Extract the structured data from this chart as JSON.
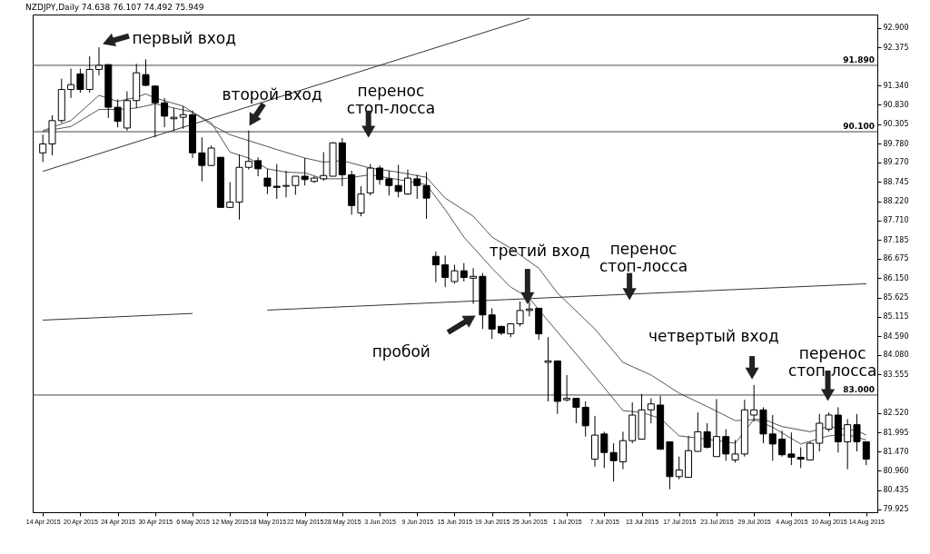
{
  "chart_data": {
    "type": "candlestick",
    "title": "NZDJPY,Daily  74.638 76.107 74.492 75.949",
    "categories": [
      "14 Apr 2015",
      null,
      null,
      null,
      "20 Apr 2015",
      null,
      null,
      null,
      "24 Apr 2015",
      null,
      null,
      null,
      "30 Apr 2015",
      null,
      null,
      null,
      "6 May 2015",
      null,
      null,
      null,
      "12 May 2015",
      null,
      null,
      null,
      "18 May 2015",
      null,
      null,
      null,
      "22 May 2015",
      null,
      null,
      null,
      "28 May 2015",
      null,
      null,
      null,
      "3 Jun 2015",
      null,
      null,
      null,
      "9 Jun 2015",
      null,
      null,
      null,
      "15 Jun 2015",
      null,
      null,
      null,
      "19 Jun 2015",
      null,
      null,
      null,
      "25 Jun 2015",
      null,
      null,
      null,
      "1 Jul 2015",
      null,
      null,
      null,
      "7 Jul 2015",
      null,
      null,
      null,
      "13 Jul 2015",
      null,
      null,
      null,
      "17 Jul 2015",
      null,
      null,
      null,
      "23 Jul 2015",
      null,
      null,
      null,
      "29 Jul 2015",
      null,
      null,
      null,
      "4 Aug 2015",
      null,
      null,
      null,
      "10 Aug 2015",
      null,
      null,
      null,
      "14 Aug 2015"
    ],
    "ohlc": [
      [
        89.53,
        90.02,
        89.28,
        89.77
      ],
      [
        89.77,
        90.54,
        89.46,
        90.4
      ],
      [
        90.4,
        91.53,
        90.34,
        91.24
      ],
      [
        91.24,
        91.8,
        91.01,
        91.37
      ],
      [
        91.66,
        91.8,
        91.15,
        91.24
      ],
      [
        91.24,
        92.13,
        91.15,
        91.78
      ],
      [
        91.78,
        92.38,
        91.62,
        91.89
      ],
      [
        91.91,
        91.91,
        90.47,
        90.76
      ],
      [
        90.76,
        90.97,
        90.22,
        90.38
      ],
      [
        90.2,
        91.19,
        90.13,
        90.94
      ],
      [
        90.94,
        91.93,
        90.74,
        91.69
      ],
      [
        91.64,
        92.05,
        91.33,
        91.35
      ],
      [
        91.33,
        91.35,
        89.95,
        90.88
      ],
      [
        90.88,
        91.01,
        90.22,
        90.52
      ],
      [
        90.45,
        90.74,
        90.13,
        90.49
      ],
      [
        90.49,
        90.79,
        90.18,
        90.56
      ],
      [
        90.56,
        90.67,
        89.39,
        89.53
      ],
      [
        89.53,
        89.95,
        88.76,
        89.19
      ],
      [
        89.19,
        89.73,
        89.17,
        89.66
      ],
      [
        89.41,
        89.41,
        88.06,
        88.06
      ],
      [
        88.06,
        88.74,
        88.04,
        88.2
      ],
      [
        88.2,
        89.48,
        87.73,
        89.14
      ],
      [
        89.14,
        90.13,
        89.08,
        89.3
      ],
      [
        89.32,
        89.41,
        88.9,
        89.1
      ],
      [
        88.85,
        89.1,
        88.42,
        88.63
      ],
      [
        88.63,
        89.23,
        88.29,
        88.6
      ],
      [
        88.63,
        89.05,
        88.33,
        88.65
      ],
      [
        88.65,
        88.9,
        88.4,
        88.9
      ],
      [
        88.9,
        89.39,
        88.65,
        88.81
      ],
      [
        88.76,
        88.9,
        88.72,
        88.85
      ],
      [
        88.83,
        89.55,
        88.78,
        88.92
      ],
      [
        88.9,
        89.82,
        88.9,
        89.8
      ],
      [
        89.8,
        89.93,
        88.63,
        88.94
      ],
      [
        88.94,
        89.05,
        87.86,
        88.11
      ],
      [
        87.91,
        88.63,
        87.82,
        88.42
      ],
      [
        88.45,
        89.23,
        88.38,
        89.12
      ],
      [
        89.12,
        89.19,
        88.67,
        88.81
      ],
      [
        88.83,
        89.05,
        88.38,
        88.65
      ],
      [
        88.65,
        89.21,
        88.33,
        88.49
      ],
      [
        88.42,
        89.08,
        88.4,
        88.85
      ],
      [
        88.83,
        88.94,
        88.29,
        88.65
      ],
      [
        88.65,
        89.01,
        87.75,
        88.31
      ],
      [
        86.74,
        86.87,
        86.04,
        86.51
      ],
      [
        86.51,
        86.76,
        85.91,
        86.17
      ],
      [
        86.06,
        86.51,
        86.0,
        86.35
      ],
      [
        86.35,
        86.56,
        86.06,
        86.17
      ],
      [
        86.15,
        86.42,
        85.46,
        86.2
      ],
      [
        86.2,
        86.29,
        84.78,
        85.16
      ],
      [
        85.16,
        85.34,
        84.51,
        84.78
      ],
      [
        84.85,
        84.87,
        84.62,
        84.67
      ],
      [
        84.65,
        84.94,
        84.56,
        84.92
      ],
      [
        84.92,
        85.52,
        84.85,
        85.28
      ],
      [
        85.28,
        85.61,
        85.12,
        85.32
      ],
      [
        85.34,
        85.34,
        84.49,
        84.65
      ],
      [
        83.88,
        84.56,
        82.83,
        83.92
      ],
      [
        83.92,
        83.92,
        82.49,
        82.83
      ],
      [
        82.87,
        83.54,
        82.83,
        82.91
      ],
      [
        82.91,
        82.91,
        82.24,
        82.67
      ],
      [
        82.67,
        82.83,
        81.88,
        82.17
      ],
      [
        81.27,
        82.44,
        81.07,
        81.92
      ],
      [
        81.95,
        82.01,
        81.03,
        81.45
      ],
      [
        81.45,
        81.7,
        80.67,
        81.23
      ],
      [
        81.2,
        82.01,
        81.0,
        81.77
      ],
      [
        81.77,
        82.8,
        81.7,
        82.46
      ],
      [
        81.81,
        83.03,
        81.81,
        82.6
      ],
      [
        82.6,
        82.91,
        82.24,
        82.76
      ],
      [
        82.73,
        82.98,
        81.52,
        81.54
      ],
      [
        81.74,
        81.74,
        80.46,
        80.8
      ],
      [
        80.8,
        81.34,
        80.73,
        80.98
      ],
      [
        80.78,
        81.9,
        80.78,
        81.5
      ],
      [
        81.48,
        82.53,
        81.48,
        82.01
      ],
      [
        82.01,
        82.24,
        81.56,
        81.59
      ],
      [
        81.34,
        82.89,
        81.34,
        81.88
      ],
      [
        81.88,
        82.08,
        81.23,
        81.41
      ],
      [
        81.25,
        81.79,
        81.18,
        81.41
      ],
      [
        81.41,
        82.87,
        81.34,
        82.6
      ],
      [
        82.46,
        83.27,
        82.28,
        82.6
      ],
      [
        82.6,
        82.67,
        81.7,
        81.95
      ],
      [
        81.95,
        82.46,
        81.23,
        81.68
      ],
      [
        81.81,
        82.04,
        81.34,
        81.39
      ],
      [
        81.41,
        81.99,
        81.11,
        81.32
      ],
      [
        81.32,
        81.59,
        81.03,
        81.27
      ],
      [
        81.25,
        81.74,
        81.25,
        81.7
      ],
      [
        81.7,
        82.49,
        81.48,
        82.24
      ],
      [
        82.08,
        82.53,
        82.01,
        82.46
      ],
      [
        82.46,
        82.67,
        81.45,
        81.74
      ],
      [
        81.74,
        82.35,
        81.0,
        82.2
      ],
      [
        82.2,
        82.49,
        81.48,
        81.74
      ],
      [
        81.74,
        81.74,
        81.11,
        81.27
      ]
    ],
    "colors": [
      "#ffffff",
      "#ffffff",
      "#ffffff",
      "#ffffff",
      "#000000",
      "#ffffff",
      "#ffffff",
      "#000000",
      "#000000",
      "#ffffff",
      "#ffffff",
      "#000000",
      "#000000",
      "#000000",
      "#ffffff",
      "#ffffff",
      "#000000",
      "#000000",
      "#ffffff",
      "#000000",
      "#ffffff",
      "#ffffff",
      "#ffffff",
      "#000000",
      "#000000",
      "#000000",
      "#ffffff",
      "#ffffff",
      "#000000",
      "#ffffff",
      "#ffffff",
      "#ffffff",
      "#000000",
      "#000000",
      "#ffffff",
      "#ffffff",
      "#000000",
      "#000000",
      "#000000",
      "#ffffff",
      "#000000",
      "#000000",
      "#000000",
      "#000000",
      "#ffffff",
      "#000000",
      "#ffffff",
      "#000000",
      "#000000",
      "#000000",
      "#ffffff",
      "#ffffff",
      "#ffffff",
      "#000000",
      "#ffffff",
      "#000000",
      "#ffffff",
      "#000000",
      "#000000",
      "#ffffff",
      "#000000",
      "#000000",
      "#ffffff",
      "#ffffff",
      "#ffffff",
      "#ffffff",
      "#000000",
      "#000000",
      "#ffffff",
      "#ffffff",
      "#ffffff",
      "#000000",
      "#ffffff",
      "#000000",
      "#ffffff",
      "#ffffff",
      "#ffffff",
      "#000000",
      "#000000",
      "#000000",
      "#000000",
      "#000000",
      "#ffffff",
      "#ffffff",
      "#ffffff",
      "#000000",
      "#ffffff",
      "#000000",
      "#000000"
    ],
    "series": [
      {
        "type": "line",
        "color": "#555555",
        "values": [
          90.13,
          null,
          null,
          90.4,
          null,
          null,
          91.08,
          null,
          90.92,
          null,
          91.03,
          91.12,
          91.01,
          null,
          null,
          90.79,
          90.63,
          null,
          90.29,
          null,
          90.02,
          null,
          89.86,
          null,
          null,
          89.62,
          null,
          null,
          89.39,
          null,
          89.28,
          null,
          89.32,
          null,
          null,
          89.12,
          null,
          null,
          89.01,
          null,
          null,
          88.87,
          null,
          88.31,
          null,
          null,
          87.82,
          null,
          87.26,
          null,
          86.96,
          null,
          null,
          86.42,
          null,
          85.75,
          null,
          null,
          null,
          84.78,
          null,
          null,
          83.88,
          null,
          null,
          83.54,
          null,
          null,
          83.05,
          null,
          null,
          82.69,
          null,
          null,
          82.31,
          null,
          null,
          82.35,
          null,
          82.15,
          null,
          null,
          82.01,
          null,
          82.15,
          null,
          null,
          82.04,
          81.92
        ]
      },
      {
        "type": "line",
        "color": "#555555",
        "values": [
          90.11,
          null,
          null,
          90.24,
          null,
          null,
          90.7,
          null,
          90.7,
          null,
          90.74,
          null,
          90.85,
          null,
          90.74,
          null,
          90.63,
          null,
          90.34,
          89.95,
          89.55,
          null,
          89.39,
          null,
          89.1,
          null,
          89.01,
          null,
          88.99,
          null,
          88.83,
          null,
          88.83,
          null,
          null,
          88.94,
          null,
          null,
          88.81,
          null,
          null,
          88.67,
          null,
          88.0,
          null,
          87.26,
          null,
          null,
          86.42,
          null,
          85.91,
          null,
          85.61,
          null,
          85.0,
          null,
          null,
          null,
          83.81,
          null,
          83.2,
          null,
          82.58,
          null,
          82.53,
          null,
          82.37,
          null,
          81.9,
          null,
          null,
          81.81,
          null,
          null,
          81.7,
          null,
          82.35,
          null,
          82.13,
          null,
          null,
          81.68,
          null,
          null,
          81.9,
          null,
          81.93,
          null,
          81.79
        ]
      },
      {
        "type": "line",
        "color": "#333333",
        "values": [
          89.03,
          null,
          null,
          null,
          null,
          null,
          null,
          null,
          null,
          null,
          null,
          null,
          null,
          null,
          null,
          null,
          null,
          null,
          null,
          null,
          null,
          null,
          null,
          null,
          null,
          null,
          null,
          null,
          null,
          null,
          null,
          null,
          null,
          null,
          null,
          null,
          null,
          null,
          null,
          null,
          null,
          null,
          null,
          null,
          null,
          null,
          null,
          null,
          null,
          null,
          null,
          null,
          93.16,
          null,
          null,
          null,
          null,
          null,
          null,
          null,
          null,
          null,
          null,
          null,
          null,
          null,
          null,
          null,
          null,
          null,
          null,
          null,
          null,
          null,
          null,
          null,
          null,
          null,
          null,
          null,
          null,
          null,
          null,
          null,
          null,
          null,
          null,
          null,
          null
        ]
      },
      {
        "type": "line",
        "color": "#333333",
        "values": [
          85.02,
          null,
          null,
          null,
          null,
          null,
          null,
          null,
          null,
          null,
          null,
          null,
          null,
          null,
          null,
          null,
          85.2,
          null,
          null,
          null,
          null,
          null,
          null,
          null,
          null,
          null,
          null,
          null,
          null,
          null,
          null,
          null,
          null,
          null,
          null,
          null,
          null,
          null,
          null,
          null,
          null,
          null,
          null,
          null,
          null,
          null,
          null,
          null,
          null,
          null,
          null,
          null,
          null,
          null,
          null,
          null,
          null,
          null,
          null,
          null,
          null,
          null,
          null,
          null,
          null,
          null,
          null,
          null,
          null,
          null,
          null,
          null,
          null,
          null,
          null,
          null,
          null,
          null,
          null,
          null,
          null,
          null,
          null,
          null,
          null,
          null,
          null,
          null,
          null
        ]
      },
      {
        "type": "line",
        "color": "#333333",
        "values": [
          null,
          null,
          null,
          null,
          null,
          null,
          null,
          null,
          null,
          null,
          null,
          null,
          null,
          null,
          null,
          null,
          null,
          null,
          null,
          null,
          null,
          null,
          null,
          null,
          85.29,
          null,
          null,
          null,
          null,
          null,
          null,
          null,
          null,
          null,
          null,
          null,
          null,
          null,
          null,
          null,
          null,
          null,
          null,
          null,
          null,
          null,
          null,
          null,
          null,
          null,
          null,
          null,
          null,
          null,
          null,
          null,
          null,
          null,
          null,
          null,
          null,
          null,
          null,
          null,
          null,
          null,
          null,
          null,
          null,
          null,
          null,
          null,
          null,
          null,
          null,
          null,
          null,
          null,
          null,
          null,
          null,
          null,
          null,
          null,
          null,
          null,
          null,
          null,
          86.0
        ]
      }
    ],
    "ylim": [
      79.84,
      93.26
    ],
    "yticks": [
      {
        "value": 92.9,
        "label": "92.900"
      },
      {
        "value": 92.375,
        "label": "92.375"
      },
      {
        "value": 91.34,
        "label": "91.340"
      },
      {
        "value": 90.83,
        "label": "90.830"
      },
      {
        "value": 90.305,
        "label": "90.305"
      },
      {
        "value": 89.78,
        "label": "89.780"
      },
      {
        "value": 89.27,
        "label": "89.270"
      },
      {
        "value": 88.745,
        "label": "88.745"
      },
      {
        "value": 88.22,
        "label": "88.220"
      },
      {
        "value": 87.71,
        "label": "87.710"
      },
      {
        "value": 87.185,
        "label": "87.185"
      },
      {
        "value": 86.675,
        "label": "86.675"
      },
      {
        "value": 86.15,
        "label": "86.150"
      },
      {
        "value": 85.625,
        "label": "85.625"
      },
      {
        "value": 85.115,
        "label": "85.115"
      },
      {
        "value": 84.59,
        "label": "84.590"
      },
      {
        "value": 84.08,
        "label": "84.080"
      },
      {
        "value": 83.555,
        "label": "83.555"
      },
      {
        "value": 82.52,
        "label": "82.520"
      },
      {
        "value": 81.995,
        "label": "81.995"
      },
      {
        "value": 81.47,
        "label": "81.470"
      },
      {
        "value": 80.96,
        "label": "80.960"
      },
      {
        "value": 80.435,
        "label": "80.435"
      },
      {
        "value": 79.925,
        "label": "79.925"
      }
    ],
    "ref_lines": [
      {
        "axis": "y",
        "value": 91.89,
        "label": "91.890",
        "color": "#444444"
      },
      {
        "axis": "y",
        "value": 90.1,
        "label": "90.100",
        "color": "#444444"
      },
      {
        "axis": "y",
        "value": 83.0,
        "label": "83.000",
        "color": "#444444"
      }
    ],
    "annotations": [
      "первый вход",
      "второй вход",
      {
        "text": "перенос стоп-лосса",
        "y": 90.1
      },
      {
        "text": "третий вход",
        "y": 85.61
      },
      {
        "text": "перенос стоп-лосса",
        "y": 85.72
      },
      "пробой",
      "четвертый вход",
      {
        "text": "перенос стоп-лосса",
        "y": 83.0
      }
    ]
  }
}
